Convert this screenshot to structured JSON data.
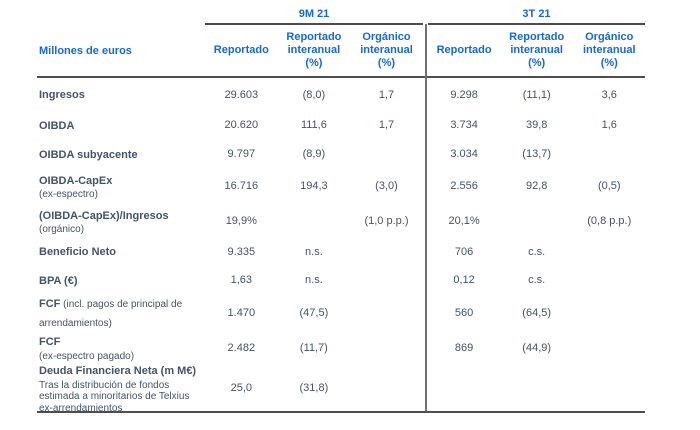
{
  "colors": {
    "header_blue": "#1668DB",
    "text_dark": "#44546A",
    "rule_dark": "#4D4D4D",
    "divider_gray": "#707070"
  },
  "table": {
    "unit_label": "Millones de euros",
    "groups": [
      {
        "label": "9M 21",
        "columns": [
          "Reportado",
          "Reportado interanual (%)",
          "Orgánico interanual (%)"
        ]
      },
      {
        "label": "3T 21",
        "columns": [
          "Reportado",
          "Reportado interanual (%)",
          "Orgánico interanual (%)"
        ]
      }
    ],
    "rows": [
      {
        "label": "Ingresos",
        "inline": "",
        "sub": [],
        "values": [
          "29.603",
          "(8,0)",
          "1,7",
          "9.298",
          "(11,1)",
          "3,6"
        ]
      },
      {
        "label": "OIBDA",
        "inline": "",
        "sub": [],
        "values": [
          "20.620",
          "111,6",
          "1,7",
          "3.734",
          "39,8",
          "1,6"
        ]
      },
      {
        "label": "OIBDA subyacente",
        "inline": "",
        "sub": [],
        "values": [
          "9.797",
          "(8,9)",
          "",
          "3.034",
          "(13,7)",
          ""
        ]
      },
      {
        "label": "OIBDA-CapEx",
        "inline": "",
        "sub": [
          "(ex-espectro)"
        ],
        "values": [
          "16.716",
          "194,3",
          "(3,0)",
          "2.556",
          "92,8",
          "(0,5)"
        ]
      },
      {
        "label": "(OIBDA-CapEx)/Ingresos",
        "inline": "",
        "sub": [
          "(orgánico)"
        ],
        "values": [
          "19,9%",
          "",
          "(1,0 p.p.)",
          "20,1%",
          "",
          "(0,8 p.p.)"
        ]
      },
      {
        "label": "Beneficio Neto",
        "inline": "",
        "sub": [],
        "values": [
          "9.335",
          "n.s.",
          "",
          "706",
          "c.s.",
          ""
        ]
      },
      {
        "label": "BPA (€)",
        "inline": "",
        "sub": [],
        "values": [
          "1,63",
          "n.s.",
          "",
          "0,12",
          "c.s.",
          ""
        ]
      },
      {
        "label": "FCF",
        "inline": " (incl. pagos de principal de arrendamientos)",
        "sub": [],
        "values": [
          "1.470",
          "(47,5)",
          "",
          "560",
          "(64,5)",
          ""
        ]
      },
      {
        "label": "FCF",
        "inline": "",
        "sub": [
          "(ex-espectro pagado)"
        ],
        "values": [
          "2.482",
          "(11,7)",
          "",
          "869",
          "(44,9)",
          ""
        ]
      },
      {
        "label": "Deuda Financiera Neta (m M€)",
        "inline": "",
        "sub": [
          "Tras la distribución de fondos",
          "estimada a minoritarios de Telxius",
          "ex-arrendamientos"
        ],
        "values": [
          "25,0",
          "(31,8)",
          "",
          "",
          "",
          ""
        ]
      }
    ]
  }
}
